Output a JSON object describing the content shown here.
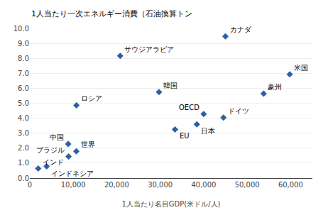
{
  "chart_data": {
    "type": "scatter",
    "ylabel": "1人当たり一次エネルギー消費（石油換算トン",
    "xlabel": "1人当たり名目GDP(米ドル/人)",
    "labels": [
      "インド",
      "インドネシア",
      "ブラジル",
      "中国",
      "世界",
      "ロシア",
      "サウジアラビア",
      "韓国",
      "EU",
      "日本",
      "OECD",
      "ドイツ",
      "カナダ",
      "豪州",
      "米国"
    ],
    "x": [
      1940,
      3870,
      8920,
      8830,
      10700,
      10720,
      20790,
      29720,
      33400,
      38430,
      40000,
      44550,
      45000,
      53800,
      59800
    ],
    "values": [
      0.64,
      0.78,
      1.44,
      2.28,
      1.79,
      4.86,
      8.16,
      5.75,
      3.25,
      3.59,
      4.28,
      4.04,
      9.47,
      5.64,
      6.93
    ],
    "color": "#2e5fa3",
    "marker": "diamond",
    "xlim": [
      0,
      65000
    ],
    "ylim": [
      0.0,
      10.0
    ],
    "xticks": [
      0,
      {
        "value": 10000,
        "label": "10,000"
      },
      {
        "value": 20000,
        "label": "20,000"
      },
      {
        "value": 30000,
        "label": "30,000"
      },
      {
        "value": 40000,
        "label": "40,000"
      },
      {
        "value": 50000,
        "label": "50,000"
      },
      {
        "value": 60000,
        "label": "60,000"
      }
    ],
    "yticks": [
      {
        "value": 0.0,
        "label": "0.0"
      },
      {
        "value": 1.0,
        "label": "1.0"
      },
      {
        "value": 2.0,
        "label": "2.0"
      },
      {
        "value": 3.0,
        "label": "3.0"
      },
      {
        "value": 4.0,
        "label": "4.0"
      },
      {
        "value": 5.0,
        "label": "5.0"
      },
      {
        "value": 6.0,
        "label": "6.0"
      },
      {
        "value": 7.0,
        "label": "7.0"
      },
      {
        "value": 8.0,
        "label": "8.0"
      },
      {
        "value": 9.0,
        "label": "9.0"
      },
      {
        "value": 10.0,
        "label": "10.0"
      }
    ],
    "grid": "y"
  }
}
